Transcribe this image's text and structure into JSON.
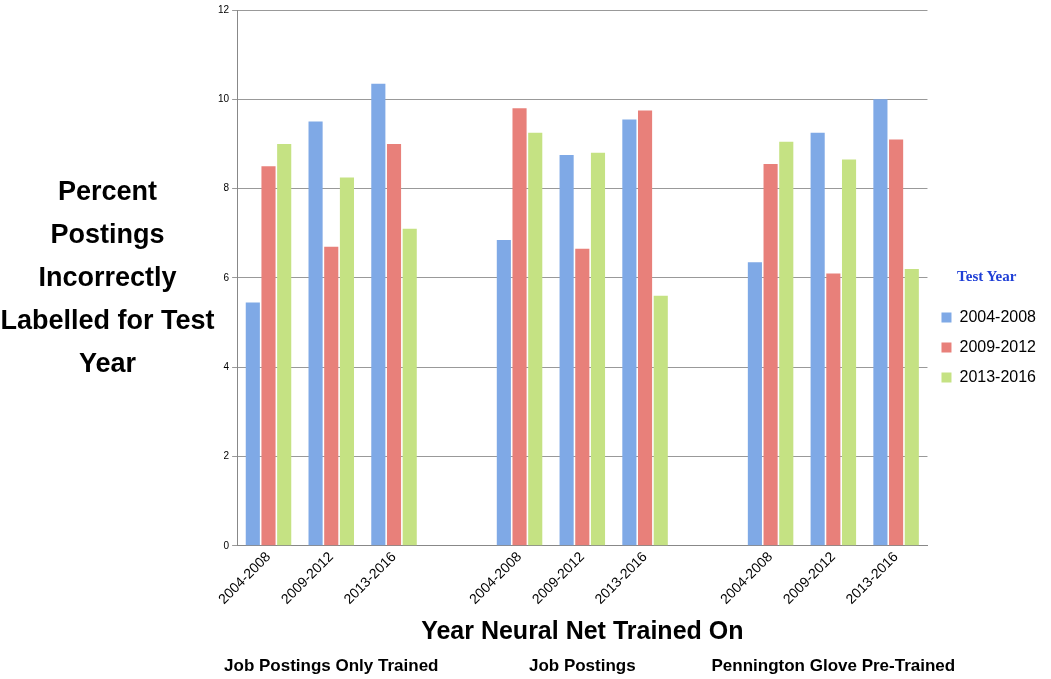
{
  "chart_data": {
    "type": "bar",
    "xlabel": "Year Neural Net Trained On",
    "ylabel": "Percent Postings Incorrectly Labelled for Test Year",
    "legend_title": "Test Year",
    "categories": [
      "2004-2008",
      "2009-2012",
      "2013-2016",
      null,
      "2004-2008",
      "2009-2012",
      "2013-2016",
      null,
      "2004-2008",
      "2009-2012",
      "2013-2016"
    ],
    "series": [
      {
        "name": "2004-2008",
        "color": "#7fa9e6",
        "values": [
          5.45,
          9.5,
          10.35,
          null,
          6.85,
          8.75,
          9.55,
          null,
          6.35,
          9.25,
          10.0
        ]
      },
      {
        "name": "2009-2012",
        "color": "#e8807a",
        "values": [
          8.5,
          6.7,
          9.0,
          null,
          9.8,
          6.65,
          9.75,
          null,
          8.55,
          6.1,
          9.1
        ]
      },
      {
        "name": "2013-2016",
        "color": "#c5e283",
        "values": [
          9.0,
          8.25,
          7.1,
          null,
          9.25,
          8.8,
          5.6,
          null,
          9.05,
          8.65,
          6.2
        ]
      }
    ],
    "ylim": [
      0,
      12
    ],
    "yticks": [
      0,
      2,
      4,
      6,
      8,
      10,
      12
    ],
    "grid": "y",
    "legend": "right",
    "annotations": [
      "Job Postings Only Trained",
      "Job Postings",
      "Pennington Glove Pre-Trained"
    ]
  }
}
